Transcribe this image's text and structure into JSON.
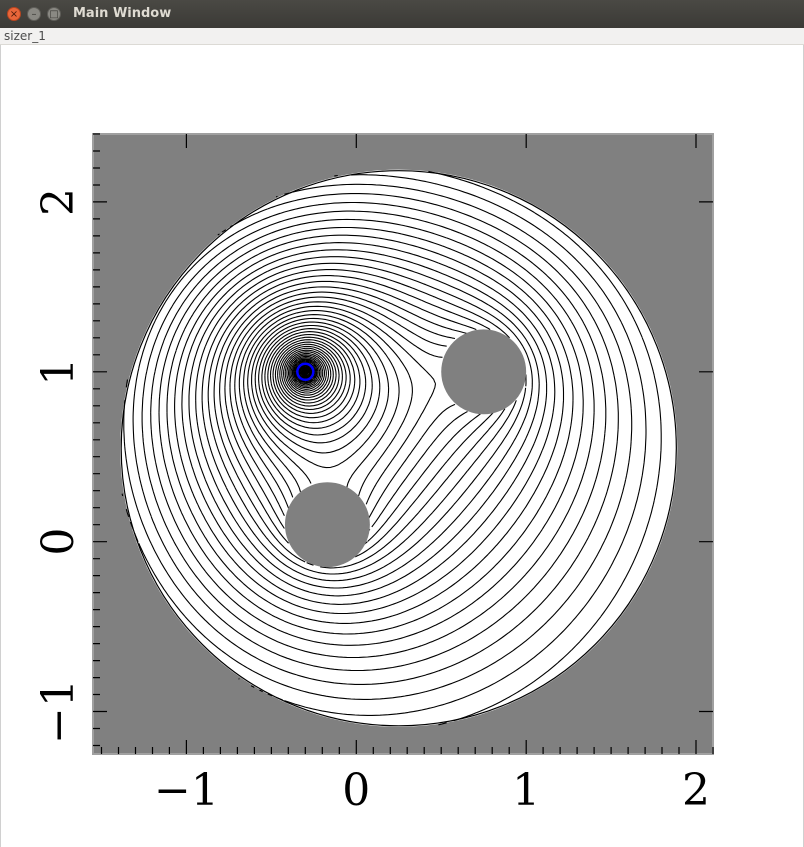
{
  "window": {
    "title": "Main Window",
    "close_glyph": "×",
    "min_glyph": "–",
    "max_glyph": "□"
  },
  "panel": {
    "label": "sizer_1"
  },
  "chart_data": {
    "type": "contour",
    "title": "",
    "xlabel": "",
    "ylabel": "",
    "xlim": [
      -1.55,
      2.1
    ],
    "ylim": [
      -1.25,
      2.4
    ],
    "x_ticks": [
      -1,
      0,
      1,
      2
    ],
    "y_ticks": [
      -1,
      0,
      1,
      2
    ],
    "x_tick_labels": [
      "−1",
      "0",
      "1",
      "2"
    ],
    "y_tick_labels": [
      "−1",
      "0",
      "1",
      "2"
    ],
    "grid": false,
    "legend": "none",
    "background_color": "#808080",
    "domain_fill": "#ffffff",
    "contour_color": "#000000",
    "marker_color": "#0000ff",
    "outer_disk": {
      "center": [
        0.25,
        0.55
      ],
      "radius": 1.64
    },
    "holes": [
      {
        "center": [
          0.75,
          1.0
        ],
        "radius": 0.25
      },
      {
        "center": [
          -0.17,
          0.1
        ],
        "radius": 0.25
      }
    ],
    "marker": {
      "x": -0.3,
      "y": 1.0,
      "shape": "circle"
    },
    "contour_levels": 60
  }
}
